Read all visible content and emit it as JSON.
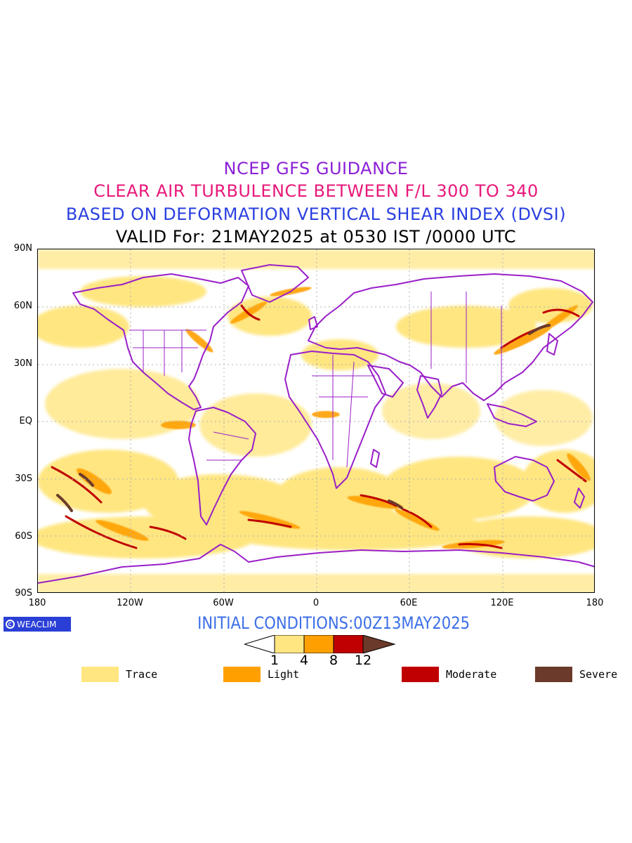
{
  "header": {
    "line1": {
      "text": "NCEP GFS GUIDANCE",
      "color": "#8a1fd6"
    },
    "line2": {
      "text": "CLEAR AIR TURBULENCE BETWEEN F/L 300 TO 340",
      "color": "#e8187a"
    },
    "line3": {
      "text": "BASED ON DEFORMATION VERTICAL SHEAR INDEX (DVSI)",
      "color": "#2a3fe0"
    },
    "line4": {
      "text": "VALID For: 21MAY2025 at 0530 IST /0000 UTC",
      "color": "#000000"
    }
  },
  "map": {
    "projection": "cylindrical-equidistant",
    "lat_range": [
      -90,
      90
    ],
    "lon_range": [
      -180,
      180
    ],
    "lat_labels": [
      "90N",
      "60N",
      "30N",
      "EQ",
      "30S",
      "60S",
      "90S"
    ],
    "lon_labels": [
      "180",
      "120W",
      "60W",
      "0",
      "60E",
      "120E",
      "180"
    ],
    "coastline_color": "#9a1fc8",
    "grid": "dotted"
  },
  "brand": {
    "label": "WEACLIM",
    "icon": "weaclim-logo-icon"
  },
  "initial_conditions": "INITIAL CONDITIONS:00Z13MAY2025",
  "colorbar": {
    "levels": [
      "1",
      "4",
      "8",
      "12"
    ],
    "colors": {
      "below": "#ffffff",
      "trace": "#ffe680",
      "light": "#ffa000",
      "moderate": "#c00000",
      "severe": "#6b3a2a"
    }
  },
  "legend": [
    {
      "label": "Trace",
      "color": "#ffe680"
    },
    {
      "label": "Light",
      "color": "#ffa000"
    },
    {
      "label": "Moderate",
      "color": "#c00000"
    },
    {
      "label": "Severe",
      "color": "#6b3a2a"
    }
  ]
}
